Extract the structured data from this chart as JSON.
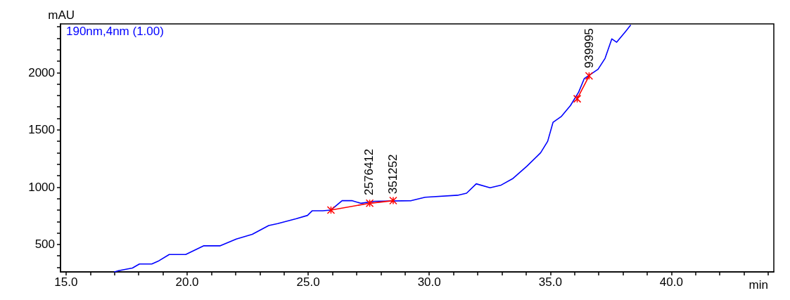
{
  "chart_data": {
    "type": "line",
    "ylabel": "mAU",
    "xlabel": "min",
    "xlim": [
      14.77,
      44.23
    ],
    "ylim": [
      260,
      2425
    ],
    "xticks": [
      {
        "value": 15,
        "label": "15.0"
      },
      {
        "value": 16,
        "label": null
      },
      {
        "value": 17,
        "label": null
      },
      {
        "value": 18,
        "label": null
      },
      {
        "value": 19,
        "label": null
      },
      {
        "value": 20,
        "label": "20.0"
      },
      {
        "value": 21,
        "label": null
      },
      {
        "value": 22,
        "label": null
      },
      {
        "value": 23,
        "label": null
      },
      {
        "value": 24,
        "label": null
      },
      {
        "value": 25,
        "label": "25.0"
      },
      {
        "value": 26,
        "label": null
      },
      {
        "value": 27,
        "label": null
      },
      {
        "value": 28,
        "label": null
      },
      {
        "value": 29,
        "label": null
      },
      {
        "value": 30,
        "label": "30.0"
      },
      {
        "value": 31,
        "label": null
      },
      {
        "value": 32,
        "label": null
      },
      {
        "value": 33,
        "label": null
      },
      {
        "value": 34,
        "label": null
      },
      {
        "value": 35,
        "label": "35.0"
      },
      {
        "value": 36,
        "label": null
      },
      {
        "value": 37,
        "label": null
      },
      {
        "value": 38,
        "label": null
      },
      {
        "value": 39,
        "label": null
      },
      {
        "value": 40,
        "label": "40.0"
      },
      {
        "value": 41,
        "label": null
      },
      {
        "value": 42,
        "label": null
      },
      {
        "value": 43,
        "label": null
      },
      {
        "value": 44,
        "label": null
      }
    ],
    "yticks": [
      {
        "value": 300,
        "label": null
      },
      {
        "value": 400,
        "label": null
      },
      500,
      {
        "value": 600,
        "label": null
      },
      {
        "value": 700,
        "label": null
      },
      {
        "value": 800,
        "label": null
      },
      {
        "value": 900,
        "label": null
      },
      1000,
      {
        "value": 1100,
        "label": null
      },
      {
        "value": 1200,
        "label": null
      },
      {
        "value": 1300,
        "label": null
      },
      {
        "value": 1400,
        "label": null
      },
      1500,
      {
        "value": 1600,
        "label": null
      },
      {
        "value": 1700,
        "label": null
      },
      {
        "value": 1800,
        "label": null
      },
      {
        "value": 1900,
        "label": null
      },
      2000,
      {
        "value": 2100,
        "label": null
      },
      {
        "value": 2200,
        "label": null
      },
      {
        "value": 2300,
        "label": null
      },
      {
        "value": 2400,
        "label": null
      }
    ],
    "grid": false,
    "legend": "top left",
    "line_style": "solid",
    "series": [
      {
        "name": "190nm,4nm (1.00)",
        "color": "#0000ff",
        "marker": "none",
        "x": [
          17.0,
          17.17,
          17.74,
          18.03,
          18.54,
          18.8,
          19.26,
          19.94,
          20.69,
          21.37,
          22.03,
          22.69,
          23.37,
          23.74,
          24.51,
          24.97,
          25.17,
          25.6,
          25.94,
          26.4,
          26.8,
          27.17,
          27.74,
          29.26,
          29.83,
          31.17,
          31.54,
          31.94,
          32.51,
          32.97,
          33.46,
          34.03,
          34.6,
          34.89,
          35.11,
          35.46,
          35.83,
          36.17,
          36.4,
          36.97,
          37.26,
          37.54,
          37.74,
          38.11,
          38.31
        ],
        "values": [
          260,
          271,
          294,
          329,
          329,
          353,
          412,
          412,
          488,
          488,
          547,
          588,
          665,
          682,
          724,
          753,
          794,
          794,
          800,
          882,
          882,
          859,
          876,
          882,
          912,
          929,
          947,
          1029,
          994,
          1018,
          1076,
          1182,
          1300,
          1400,
          1565,
          1618,
          1712,
          1829,
          1947,
          2029,
          2124,
          2294,
          2265,
          2359,
          2412
        ]
      },
      {
        "type": "line",
        "color": "#ff0000",
        "marker": "cross",
        "x": [
          25.94,
          27.54,
          28.51
        ],
        "values": [
          800,
          859,
          882
        ]
      },
      {
        "type": "line",
        "color": "#ff0000",
        "marker": "cross",
        "x": [
          36.11,
          36.6
        ],
        "values": [
          1771,
          1971
        ]
      }
    ],
    "annotations": [
      {
        "text": "2576412",
        "x": 27.5,
        "y": 880
      },
      {
        "text": "351252",
        "x": 28.5,
        "y": 890
      },
      {
        "text": "939995",
        "x": 36.6,
        "y": 1990
      }
    ]
  }
}
